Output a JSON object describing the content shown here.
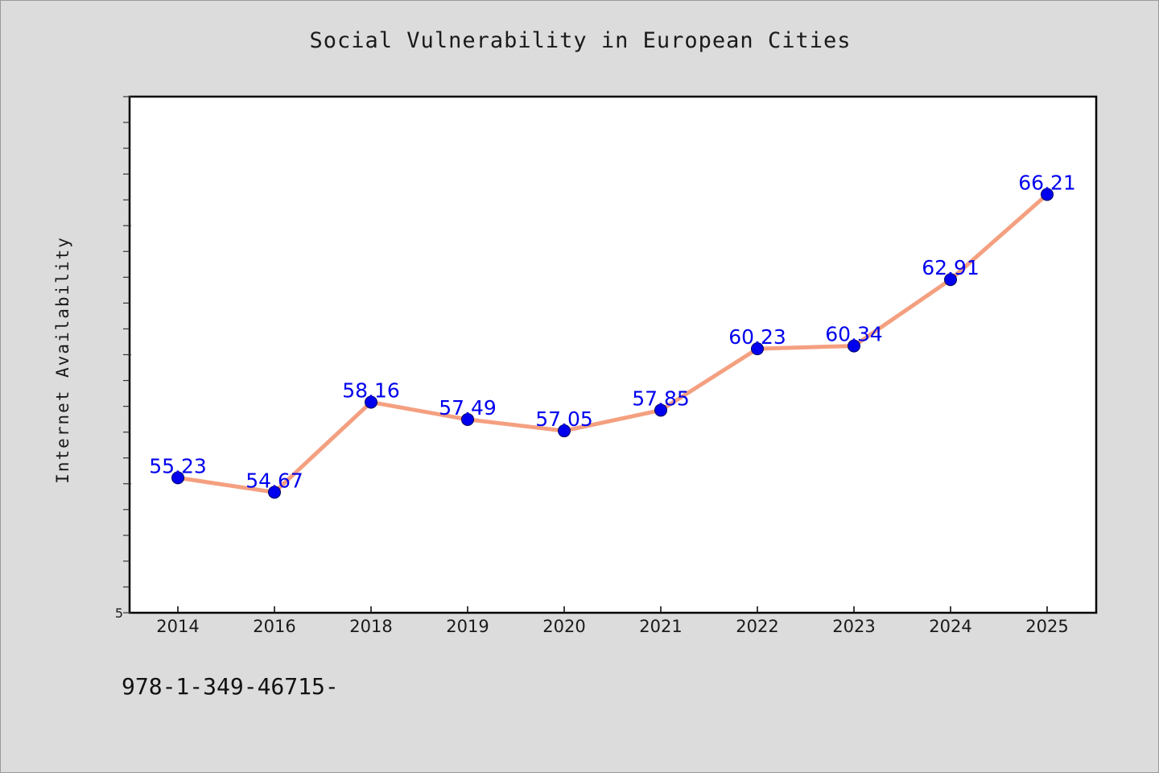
{
  "chart_data": {
    "type": "line",
    "title": "Social Vulnerability in European Cities",
    "xlabel": "",
    "ylabel": "Internet Availability",
    "categories": [
      "2014",
      "2016",
      "2018",
      "2019",
      "2020",
      "2021",
      "2022",
      "2023",
      "2024",
      "2025"
    ],
    "series": [
      {
        "values": [
          55.23,
          54.67,
          58.16,
          57.49,
          57.05,
          57.85,
          60.23,
          60.34,
          62.91,
          66.21
        ],
        "data_labels": [
          "55.23",
          "54.67",
          "58.16",
          "57.49",
          "57.05",
          "57.85",
          "60.23",
          "60.34",
          "62.91",
          "66.21"
        ]
      }
    ],
    "y_tick_labels": [
      "5"
    ],
    "ylim": [
      50,
      70
    ],
    "grid": false,
    "legend": "none",
    "colors": {
      "line": "#f4a080",
      "marker": "#0000ee",
      "data_label": "#0000ee",
      "background": "#dcdcdc",
      "plot_area": "#ffffff"
    }
  },
  "footer": {
    "code": "978-1-349-46715-"
  }
}
